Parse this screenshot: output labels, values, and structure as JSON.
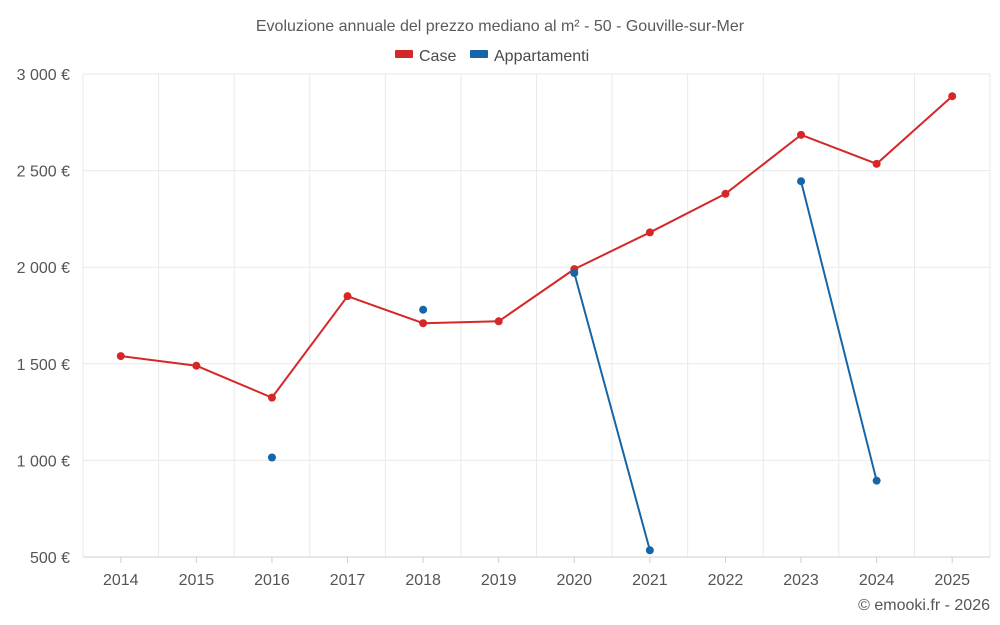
{
  "chart_data": {
    "type": "line",
    "title": "Evoluzione annuale del prezzo mediano al m² - 50 - Gouville-sur-Mer",
    "categories": [
      "2014",
      "2015",
      "2016",
      "2017",
      "2018",
      "2019",
      "2020",
      "2021",
      "2022",
      "2023",
      "2024",
      "2025"
    ],
    "series": [
      {
        "name": "Case",
        "color": "#d62728",
        "values": [
          1540,
          1490,
          1325,
          1850,
          1710,
          1720,
          1990,
          2180,
          2380,
          2685,
          2535,
          2885
        ]
      },
      {
        "name": "Appartamenti",
        "color": "#1565a8",
        "values": [
          null,
          null,
          1015,
          null,
          1780,
          null,
          1970,
          535,
          null,
          2445,
          895,
          null
        ]
      }
    ],
    "y_ticks": [
      500,
      1000,
      1500,
      2000,
      2500,
      3000
    ],
    "y_tick_labels": [
      "500 €",
      "1 000 €",
      "1 500 €",
      "2 000 €",
      "2 500 €",
      "3 000 €"
    ],
    "ylim": [
      500,
      3000
    ],
    "xlabel": "",
    "ylabel": "",
    "grid": true,
    "legend_position": "top-center"
  },
  "credit": "© emooki.fr - 2026"
}
